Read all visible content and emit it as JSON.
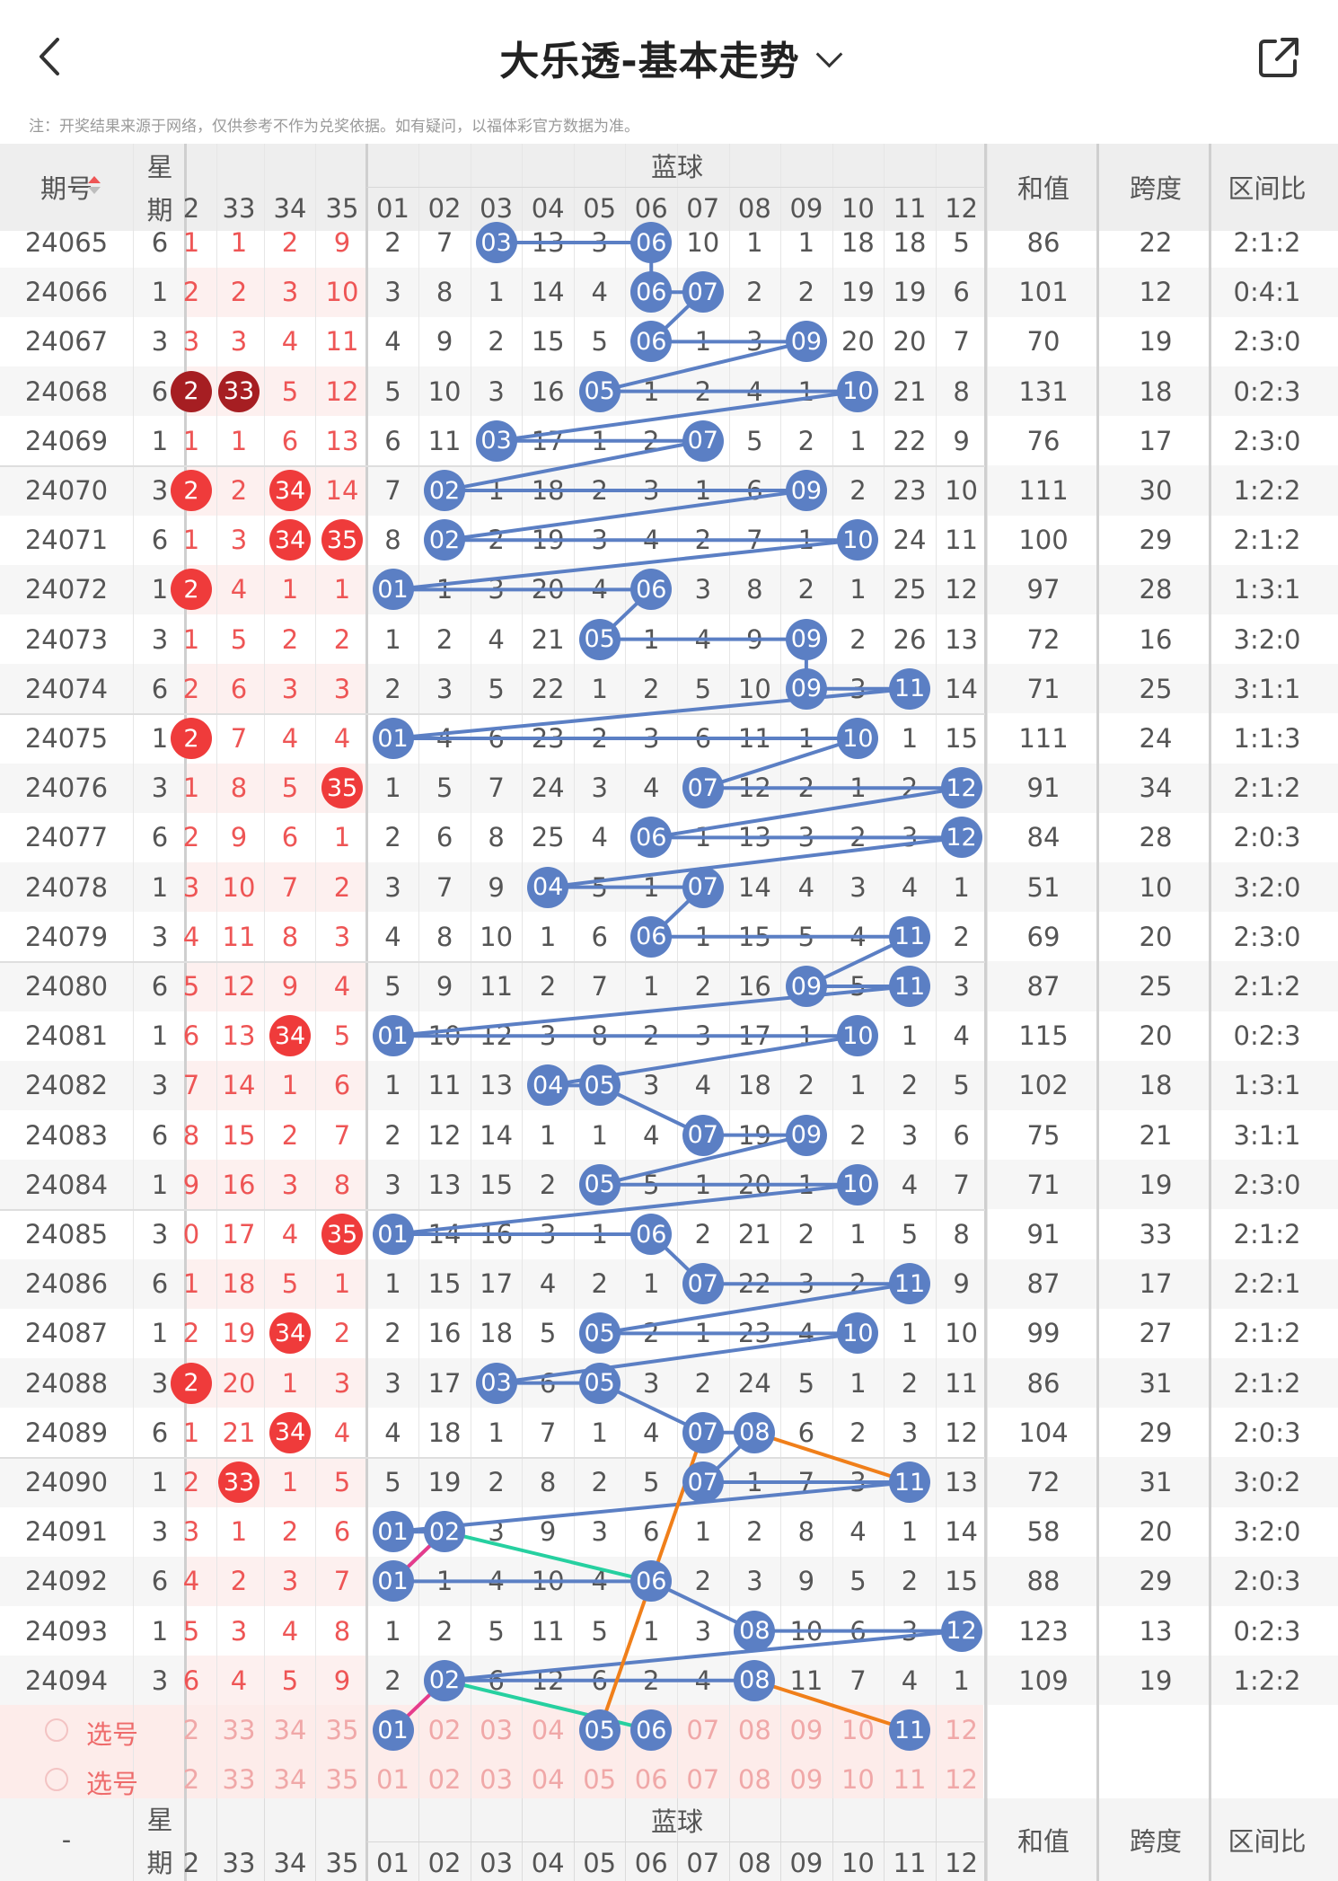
{
  "header": {
    "title": "大乐透-基本走势",
    "note": "注：开奖结果来源于网络，仅供参考不作为兑奖依据。如有疑问，以福体彩官方数据为准。"
  },
  "table": {
    "col_issue": "期号",
    "col_week_top": "星",
    "col_week_bottom": "期",
    "blue_group": "蓝球",
    "col_sum": "和值",
    "col_span": "跨度",
    "col_zone": "区间比",
    "front_headers": [
      "2",
      "33",
      "34",
      "35"
    ],
    "blue_headers": [
      "01",
      "02",
      "03",
      "04",
      "05",
      "06",
      "07",
      "08",
      "09",
      "10",
      "11",
      "12"
    ],
    "rows": [
      {
        "issue": "24065",
        "week": "6",
        "front": [
          "1",
          "1",
          "2",
          "9"
        ],
        "blue": [
          "2",
          "7",
          "03",
          "13",
          "3",
          "06",
          "10",
          "1",
          "1",
          "18",
          "18",
          "5"
        ],
        "sum": "86",
        "span": "22",
        "zone": "2:1:2"
      },
      {
        "issue": "24066",
        "week": "1",
        "front": [
          "2",
          "2",
          "3",
          "10"
        ],
        "blue": [
          "3",
          "8",
          "1",
          "14",
          "4",
          "06",
          "07",
          "2",
          "2",
          "19",
          "19",
          "6"
        ],
        "sum": "101",
        "span": "12",
        "zone": "0:4:1"
      },
      {
        "issue": "24067",
        "week": "3",
        "front": [
          "3",
          "3",
          "4",
          "11"
        ],
        "blue": [
          "4",
          "9",
          "2",
          "15",
          "5",
          "06",
          "1",
          "3",
          "09",
          "20",
          "20",
          "7"
        ],
        "sum": "70",
        "span": "19",
        "zone": "2:3:0"
      },
      {
        "issue": "24068",
        "week": "6",
        "front": [
          "2",
          "33",
          "5",
          "12"
        ],
        "blue": [
          "5",
          "10",
          "3",
          "16",
          "05",
          "1",
          "2",
          "4",
          "1",
          "10",
          "21",
          "8"
        ],
        "sum": "131",
        "span": "18",
        "zone": "0:2:3"
      },
      {
        "issue": "24069",
        "week": "1",
        "front": [
          "1",
          "1",
          "6",
          "13"
        ],
        "blue": [
          "6",
          "11",
          "03",
          "17",
          "1",
          "2",
          "07",
          "5",
          "2",
          "1",
          "22",
          "9"
        ],
        "sum": "76",
        "span": "17",
        "zone": "2:3:0"
      },
      {
        "issue": "24070",
        "week": "3",
        "front": [
          "2",
          "2",
          "34",
          "14"
        ],
        "blue": [
          "7",
          "02",
          "1",
          "18",
          "2",
          "3",
          "1",
          "6",
          "09",
          "2",
          "23",
          "10"
        ],
        "sum": "111",
        "span": "30",
        "zone": "1:2:2"
      },
      {
        "issue": "24071",
        "week": "6",
        "front": [
          "1",
          "3",
          "34",
          "35"
        ],
        "blue": [
          "8",
          "02",
          "2",
          "19",
          "3",
          "4",
          "2",
          "7",
          "1",
          "10",
          "24",
          "11"
        ],
        "sum": "100",
        "span": "29",
        "zone": "2:1:2"
      },
      {
        "issue": "24072",
        "week": "1",
        "front": [
          "2",
          "4",
          "1",
          "1"
        ],
        "blue": [
          "01",
          "1",
          "3",
          "20",
          "4",
          "06",
          "3",
          "8",
          "2",
          "1",
          "25",
          "12"
        ],
        "sum": "97",
        "span": "28",
        "zone": "1:3:1"
      },
      {
        "issue": "24073",
        "week": "3",
        "front": [
          "1",
          "5",
          "2",
          "2"
        ],
        "blue": [
          "1",
          "2",
          "4",
          "21",
          "05",
          "1",
          "4",
          "9",
          "09",
          "2",
          "26",
          "13"
        ],
        "sum": "72",
        "span": "16",
        "zone": "3:2:0"
      },
      {
        "issue": "24074",
        "week": "6",
        "front": [
          "2",
          "6",
          "3",
          "3"
        ],
        "blue": [
          "2",
          "3",
          "5",
          "22",
          "1",
          "2",
          "5",
          "10",
          "09",
          "3",
          "11",
          "14"
        ],
        "sum": "71",
        "span": "25",
        "zone": "3:1:1"
      },
      {
        "issue": "24075",
        "week": "1",
        "front": [
          "2",
          "7",
          "4",
          "4"
        ],
        "blue": [
          "01",
          "4",
          "6",
          "23",
          "2",
          "3",
          "6",
          "11",
          "1",
          "10",
          "1",
          "15"
        ],
        "sum": "111",
        "span": "24",
        "zone": "1:1:3"
      },
      {
        "issue": "24076",
        "week": "3",
        "front": [
          "1",
          "8",
          "5",
          "35"
        ],
        "blue": [
          "1",
          "5",
          "7",
          "24",
          "3",
          "4",
          "07",
          "12",
          "2",
          "1",
          "2",
          "12"
        ],
        "sum": "91",
        "span": "34",
        "zone": "2:1:2"
      },
      {
        "issue": "24077",
        "week": "6",
        "front": [
          "2",
          "9",
          "6",
          "1"
        ],
        "blue": [
          "2",
          "6",
          "8",
          "25",
          "4",
          "06",
          "1",
          "13",
          "3",
          "2",
          "3",
          "12"
        ],
        "sum": "84",
        "span": "28",
        "zone": "2:0:3"
      },
      {
        "issue": "24078",
        "week": "1",
        "front": [
          "3",
          "10",
          "7",
          "2"
        ],
        "blue": [
          "3",
          "7",
          "9",
          "04",
          "5",
          "1",
          "07",
          "14",
          "4",
          "3",
          "4",
          "1"
        ],
        "sum": "51",
        "span": "10",
        "zone": "3:2:0"
      },
      {
        "issue": "24079",
        "week": "3",
        "front": [
          "4",
          "11",
          "8",
          "3"
        ],
        "blue": [
          "4",
          "8",
          "10",
          "1",
          "6",
          "06",
          "1",
          "15",
          "5",
          "4",
          "11",
          "2"
        ],
        "sum": "69",
        "span": "20",
        "zone": "2:3:0"
      },
      {
        "issue": "24080",
        "week": "6",
        "front": [
          "5",
          "12",
          "9",
          "4"
        ],
        "blue": [
          "5",
          "9",
          "11",
          "2",
          "7",
          "1",
          "2",
          "16",
          "09",
          "5",
          "11",
          "3"
        ],
        "sum": "87",
        "span": "25",
        "zone": "2:1:2"
      },
      {
        "issue": "24081",
        "week": "1",
        "front": [
          "6",
          "13",
          "34",
          "5"
        ],
        "blue": [
          "01",
          "10",
          "12",
          "3",
          "8",
          "2",
          "3",
          "17",
          "1",
          "10",
          "1",
          "4"
        ],
        "sum": "115",
        "span": "20",
        "zone": "0:2:3"
      },
      {
        "issue": "24082",
        "week": "3",
        "front": [
          "7",
          "14",
          "1",
          "6"
        ],
        "blue": [
          "1",
          "11",
          "13",
          "04",
          "05",
          "3",
          "4",
          "18",
          "2",
          "1",
          "2",
          "5"
        ],
        "sum": "102",
        "span": "18",
        "zone": "1:3:1"
      },
      {
        "issue": "24083",
        "week": "6",
        "front": [
          "8",
          "15",
          "2",
          "7"
        ],
        "blue": [
          "2",
          "12",
          "14",
          "1",
          "1",
          "4",
          "07",
          "19",
          "09",
          "2",
          "3",
          "6"
        ],
        "sum": "75",
        "span": "21",
        "zone": "3:1:1"
      },
      {
        "issue": "24084",
        "week": "1",
        "front": [
          "9",
          "16",
          "3",
          "8"
        ],
        "blue": [
          "3",
          "13",
          "15",
          "2",
          "05",
          "5",
          "1",
          "20",
          "1",
          "10",
          "4",
          "7"
        ],
        "sum": "71",
        "span": "19",
        "zone": "2:3:0"
      },
      {
        "issue": "24085",
        "week": "3",
        "front": [
          "0",
          "17",
          "4",
          "35"
        ],
        "blue": [
          "01",
          "14",
          "16",
          "3",
          "1",
          "06",
          "2",
          "21",
          "2",
          "1",
          "5",
          "8"
        ],
        "sum": "91",
        "span": "33",
        "zone": "2:1:2"
      },
      {
        "issue": "24086",
        "week": "6",
        "front": [
          "1",
          "18",
          "5",
          "1"
        ],
        "blue": [
          "1",
          "15",
          "17",
          "4",
          "2",
          "1",
          "07",
          "22",
          "3",
          "2",
          "11",
          "9"
        ],
        "sum": "87",
        "span": "17",
        "zone": "2:2:1"
      },
      {
        "issue": "24087",
        "week": "1",
        "front": [
          "2",
          "19",
          "34",
          "2"
        ],
        "blue": [
          "2",
          "16",
          "18",
          "5",
          "05",
          "2",
          "1",
          "23",
          "4",
          "10",
          "1",
          "10"
        ],
        "sum": "99",
        "span": "27",
        "zone": "2:1:2"
      },
      {
        "issue": "24088",
        "week": "3",
        "front": [
          "2",
          "20",
          "1",
          "3"
        ],
        "blue": [
          "3",
          "17",
          "03",
          "6",
          "05",
          "3",
          "2",
          "24",
          "5",
          "1",
          "2",
          "11"
        ],
        "sum": "86",
        "span": "31",
        "zone": "2:1:2"
      },
      {
        "issue": "24089",
        "week": "6",
        "front": [
          "1",
          "21",
          "34",
          "4"
        ],
        "blue": [
          "4",
          "18",
          "1",
          "7",
          "1",
          "4",
          "07",
          "08",
          "6",
          "2",
          "3",
          "12"
        ],
        "sum": "104",
        "span": "29",
        "zone": "2:0:3"
      },
      {
        "issue": "24090",
        "week": "1",
        "front": [
          "2",
          "33",
          "1",
          "5"
        ],
        "blue": [
          "5",
          "19",
          "2",
          "8",
          "2",
          "5",
          "07",
          "1",
          "7",
          "3",
          "11",
          "13"
        ],
        "sum": "72",
        "span": "31",
        "zone": "3:0:2"
      },
      {
        "issue": "24091",
        "week": "3",
        "front": [
          "3",
          "1",
          "2",
          "6"
        ],
        "blue": [
          "01",
          "02",
          "3",
          "9",
          "3",
          "6",
          "1",
          "2",
          "8",
          "4",
          "1",
          "14"
        ],
        "sum": "58",
        "span": "20",
        "zone": "3:2:0"
      },
      {
        "issue": "24092",
        "week": "6",
        "front": [
          "4",
          "2",
          "3",
          "7"
        ],
        "blue": [
          "01",
          "1",
          "4",
          "10",
          "4",
          "06",
          "2",
          "3",
          "9",
          "5",
          "2",
          "15"
        ],
        "sum": "88",
        "span": "29",
        "zone": "2:0:3"
      },
      {
        "issue": "24093",
        "week": "1",
        "front": [
          "5",
          "3",
          "4",
          "8"
        ],
        "blue": [
          "1",
          "2",
          "5",
          "11",
          "5",
          "1",
          "3",
          "08",
          "10",
          "6",
          "3",
          "12"
        ],
        "sum": "123",
        "span": "13",
        "zone": "0:2:3"
      },
      {
        "issue": "24094",
        "week": "3",
        "front": [
          "6",
          "4",
          "5",
          "9"
        ],
        "blue": [
          "2",
          "02",
          "6",
          "12",
          "6",
          "2",
          "4",
          "08",
          "11",
          "7",
          "4",
          "1"
        ],
        "sum": "109",
        "span": "19",
        "zone": "1:2:2"
      }
    ],
    "red_hits": [
      {
        "row": 3,
        "col": 0
      },
      {
        "row": 3,
        "col": 1
      },
      {
        "row": 5,
        "col": 0
      },
      {
        "row": 5,
        "col": 2
      },
      {
        "row": 6,
        "col": 2
      },
      {
        "row": 6,
        "col": 3
      },
      {
        "row": 7,
        "col": 0
      },
      {
        "row": 10,
        "col": 0
      },
      {
        "row": 11,
        "col": 3
      },
      {
        "row": 16,
        "col": 2
      },
      {
        "row": 20,
        "col": 3
      },
      {
        "row": 22,
        "col": 2
      },
      {
        "row": 23,
        "col": 0
      },
      {
        "row": 24,
        "col": 2
      },
      {
        "row": 25,
        "col": 1
      }
    ],
    "blue_hits": [
      [
        2,
        5
      ],
      [
        5,
        6
      ],
      [
        5,
        8
      ],
      [
        4,
        9
      ],
      [
        2,
        6
      ],
      [
        1,
        8
      ],
      [
        1,
        9
      ],
      [
        0,
        5
      ],
      [
        4,
        8
      ],
      [
        8,
        10
      ],
      [
        0,
        9
      ],
      [
        6,
        11
      ],
      [
        5,
        11
      ],
      [
        3,
        6
      ],
      [
        5,
        10
      ],
      [
        8,
        10
      ],
      [
        0,
        9
      ],
      [
        3,
        4
      ],
      [
        6,
        8
      ],
      [
        4,
        9
      ],
      [
        0,
        5
      ],
      [
        6,
        10
      ],
      [
        4,
        9
      ],
      [
        2,
        4
      ],
      [
        6,
        7
      ],
      [
        6,
        10
      ],
      [
        0,
        1
      ],
      [
        0,
        5
      ],
      [
        7,
        11
      ],
      [
        1,
        7
      ]
    ],
    "select_rows": [
      {
        "label": "选号",
        "front": [
          "2",
          "33",
          "34",
          "35"
        ],
        "blue": [
          "01",
          "02",
          "03",
          "04",
          "05",
          "06",
          "07",
          "08",
          "09",
          "10",
          "11",
          "12"
        ],
        "picked": [
          0,
          4,
          5,
          10
        ]
      },
      {
        "label": "选号",
        "front": [
          "2",
          "33",
          "34",
          "35"
        ],
        "blue": [
          "01",
          "02",
          "03",
          "04",
          "05",
          "06",
          "07",
          "08",
          "09",
          "10",
          "11",
          "12"
        ],
        "picked": []
      }
    ]
  },
  "footer": {
    "col_issue": "-",
    "col_week_top": "星",
    "col_week_bottom": "期",
    "blue_group": "蓝球",
    "col_sum": "和值",
    "col_span": "跨度",
    "col_zone": "区间比",
    "front_headers": [
      "2",
      "33",
      "34",
      "35"
    ],
    "blue_headers": [
      "01",
      "02",
      "03",
      "04",
      "05",
      "06",
      "07",
      "08",
      "09",
      "10",
      "11",
      "12"
    ]
  },
  "colors": {
    "red_ball": "#ef3b3b",
    "dark_red_ball": "#a61e22",
    "blue_ball": "#5b7fc4",
    "blue_line": "#5b7fc4",
    "orange_line": "#f07f1a",
    "green_line": "#26d0a0",
    "magenta_line": "#e63c8c",
    "front_text": "#ee5555",
    "header_bg": "#eeeeee",
    "select_bg": "#fdecea"
  }
}
